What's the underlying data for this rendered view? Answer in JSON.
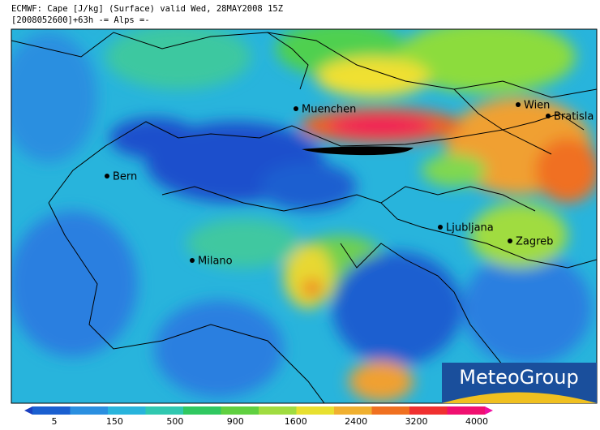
{
  "header": {
    "lines": [
      "ECMWF: Cape [J/kg] (Surface) valid Wed, 28MAY2008 15Z",
      "[2008052600]+63h -= Alps =-"
    ]
  },
  "cities": [
    {
      "label": "Muenchen"
    },
    {
      "label": "Wien"
    },
    {
      "label": "Bratisla"
    },
    {
      "label": "Bern"
    },
    {
      "label": "Ljubljana"
    },
    {
      "label": "Zagreb"
    },
    {
      "label": "Milano"
    }
  ],
  "legend": {
    "ticks": [
      5,
      150,
      500,
      900,
      1600,
      2400,
      3200,
      4000
    ]
  },
  "logo": {
    "text": "MeteoGroup"
  }
}
